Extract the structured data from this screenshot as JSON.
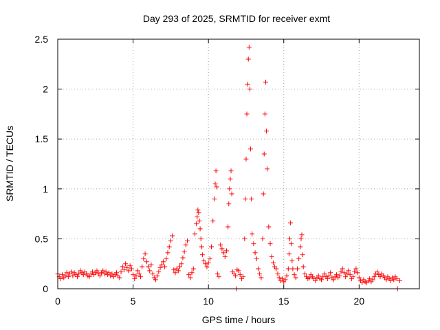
{
  "colors": {
    "series": "#ff0000",
    "grid": "#a0a0a0",
    "axis": "#000000",
    "background": "#ffffff"
  },
  "chart_data": {
    "type": "scatter",
    "title": "Day 293 of 2025, SRMTID for receiver exmt",
    "xlabel": "GPS time / hours",
    "ylabel": "SRMTID / TECUs",
    "xlim": [
      0,
      24
    ],
    "ylim": [
      0,
      2.5
    ],
    "xticks": [
      0,
      5,
      10,
      15,
      20
    ],
    "xtick_labels": [
      "0",
      "5",
      "10",
      "15",
      "20"
    ],
    "yticks": [
      0,
      0.5,
      1,
      1.5,
      2,
      2.5
    ],
    "ytick_labels": [
      "0",
      "0.5",
      "1",
      "1.5",
      "2",
      "2.5"
    ],
    "grid": true,
    "marker": "+",
    "series": [
      {
        "name": "SRMTID",
        "points": [
          [
            0.0,
            0.15
          ],
          [
            0.1,
            0.12
          ],
          [
            0.2,
            0.1
          ],
          [
            0.3,
            0.14
          ],
          [
            0.4,
            0.11
          ],
          [
            0.5,
            0.13
          ],
          [
            0.6,
            0.16
          ],
          [
            0.7,
            0.12
          ],
          [
            0.8,
            0.15
          ],
          [
            0.9,
            0.17
          ],
          [
            1.0,
            0.13
          ],
          [
            1.1,
            0.16
          ],
          [
            1.2,
            0.14
          ],
          [
            1.3,
            0.12
          ],
          [
            1.4,
            0.15
          ],
          [
            1.5,
            0.18
          ],
          [
            1.6,
            0.16
          ],
          [
            1.7,
            0.14
          ],
          [
            1.8,
            0.17
          ],
          [
            1.9,
            0.15
          ],
          [
            2.0,
            0.13
          ],
          [
            2.1,
            0.12
          ],
          [
            2.2,
            0.15
          ],
          [
            2.3,
            0.17
          ],
          [
            2.4,
            0.14
          ],
          [
            2.5,
            0.16
          ],
          [
            2.6,
            0.18
          ],
          [
            2.7,
            0.15
          ],
          [
            2.8,
            0.13
          ],
          [
            2.9,
            0.16
          ],
          [
            3.0,
            0.18
          ],
          [
            3.1,
            0.15
          ],
          [
            3.2,
            0.17
          ],
          [
            3.3,
            0.14
          ],
          [
            3.4,
            0.16
          ],
          [
            3.5,
            0.13
          ],
          [
            3.6,
            0.15
          ],
          [
            3.7,
            0.12
          ],
          [
            3.8,
            0.14
          ],
          [
            3.9,
            0.16
          ],
          [
            4.0,
            0.13
          ],
          [
            4.1,
            0.11
          ],
          [
            4.2,
            0.17
          ],
          [
            4.3,
            0.22
          ],
          [
            4.4,
            0.19
          ],
          [
            4.5,
            0.25
          ],
          [
            4.6,
            0.21
          ],
          [
            4.7,
            0.18
          ],
          [
            4.8,
            0.23
          ],
          [
            4.9,
            0.2
          ],
          [
            5.0,
            0.14
          ],
          [
            5.1,
            0.1
          ],
          [
            5.2,
            0.13
          ],
          [
            5.3,
            0.18
          ],
          [
            5.4,
            0.15
          ],
          [
            5.5,
            0.12
          ],
          [
            5.6,
            0.22
          ],
          [
            5.7,
            0.3
          ],
          [
            5.8,
            0.35
          ],
          [
            5.9,
            0.27
          ],
          [
            6.0,
            0.22
          ],
          [
            6.1,
            0.18
          ],
          [
            6.2,
            0.24
          ],
          [
            6.3,
            0.15
          ],
          [
            6.4,
            0.11
          ],
          [
            6.5,
            0.09
          ],
          [
            6.6,
            0.13
          ],
          [
            6.7,
            0.17
          ],
          [
            6.8,
            0.21
          ],
          [
            6.9,
            0.24
          ],
          [
            7.0,
            0.27
          ],
          [
            7.1,
            0.22
          ],
          [
            7.2,
            0.3
          ],
          [
            7.3,
            0.36
          ],
          [
            7.4,
            0.42
          ],
          [
            7.5,
            0.48
          ],
          [
            7.6,
            0.53
          ],
          [
            7.7,
            0.19
          ],
          [
            7.8,
            0.16
          ],
          [
            7.9,
            0.2
          ],
          [
            8.0,
            0.18
          ],
          [
            8.1,
            0.22
          ],
          [
            8.2,
            0.25
          ],
          [
            8.3,
            0.31
          ],
          [
            8.4,
            0.37
          ],
          [
            8.5,
            0.44
          ],
          [
            8.6,
            0.48
          ],
          [
            8.7,
            0.14
          ],
          [
            8.8,
            0.11
          ],
          [
            8.9,
            0.16
          ],
          [
            9.0,
            0.2
          ],
          [
            9.1,
            0.55
          ],
          [
            9.2,
            0.65
          ],
          [
            9.25,
            0.72
          ],
          [
            9.3,
            0.79
          ],
          [
            9.35,
            0.76
          ],
          [
            9.4,
            0.68
          ],
          [
            9.45,
            0.6
          ],
          [
            9.5,
            0.5
          ],
          [
            9.55,
            0.42
          ],
          [
            9.6,
            0.34
          ],
          [
            9.7,
            0.28
          ],
          [
            9.8,
            0.25
          ],
          [
            9.9,
            0.22
          ],
          [
            10.0,
            0.26
          ],
          [
            10.1,
            0.3
          ],
          [
            10.2,
            0.42
          ],
          [
            10.3,
            0.68
          ],
          [
            10.4,
            0.9
          ],
          [
            10.45,
            1.05
          ],
          [
            10.5,
            1.18
          ],
          [
            10.55,
            1.02
          ],
          [
            10.6,
            0.15
          ],
          [
            10.7,
            0.12
          ],
          [
            10.8,
            0.44
          ],
          [
            10.9,
            0.4
          ],
          [
            11.0,
            0.36
          ],
          [
            11.1,
            0.32
          ],
          [
            11.2,
            0.38
          ],
          [
            11.3,
            0.62
          ],
          [
            11.35,
            0.85
          ],
          [
            11.4,
            1.0
          ],
          [
            11.45,
            1.1
          ],
          [
            11.5,
            1.18
          ],
          [
            11.55,
            0.95
          ],
          [
            11.6,
            0.17
          ],
          [
            11.7,
            0.15
          ],
          [
            11.8,
            0.13
          ],
          [
            11.85,
            0.0
          ],
          [
            11.9,
            0.19
          ],
          [
            12.0,
            0.18
          ],
          [
            12.1,
            0.14
          ],
          [
            12.2,
            0.1
          ],
          [
            12.3,
            0.12
          ],
          [
            12.4,
            0.5
          ],
          [
            12.45,
            0.9
          ],
          [
            12.5,
            1.3
          ],
          [
            12.55,
            1.75
          ],
          [
            12.6,
            2.05
          ],
          [
            12.65,
            2.3
          ],
          [
            12.7,
            2.42
          ],
          [
            12.75,
            2.0
          ],
          [
            12.8,
            1.4
          ],
          [
            12.85,
            0.9
          ],
          [
            12.9,
            0.55
          ],
          [
            13.0,
            0.45
          ],
          [
            13.1,
            0.36
          ],
          [
            13.2,
            0.3
          ],
          [
            13.3,
            0.2
          ],
          [
            13.4,
            0.15
          ],
          [
            13.5,
            0.11
          ],
          [
            13.6,
            0.5
          ],
          [
            13.65,
            0.95
          ],
          [
            13.7,
            1.35
          ],
          [
            13.75,
            1.75
          ],
          [
            13.8,
            2.07
          ],
          [
            13.85,
            1.58
          ],
          [
            13.9,
            1.2
          ],
          [
            14.0,
            0.62
          ],
          [
            14.1,
            0.45
          ],
          [
            14.2,
            0.32
          ],
          [
            14.3,
            0.26
          ],
          [
            14.4,
            0.22
          ],
          [
            14.5,
            0.2
          ],
          [
            14.6,
            0.15
          ],
          [
            14.7,
            0.11
          ],
          [
            14.8,
            0.08
          ],
          [
            14.9,
            0.1
          ],
          [
            15.0,
            0.07
          ],
          [
            15.1,
            0.09
          ],
          [
            15.2,
            0.13
          ],
          [
            15.3,
            0.2
          ],
          [
            15.35,
            0.35
          ],
          [
            15.4,
            0.5
          ],
          [
            15.45,
            0.66
          ],
          [
            15.5,
            0.45
          ],
          [
            15.55,
            0.28
          ],
          [
            15.6,
            0.2
          ],
          [
            15.7,
            0.14
          ],
          [
            15.8,
            0.11
          ],
          [
            15.9,
            0.2
          ],
          [
            16.0,
            0.3
          ],
          [
            16.1,
            0.42
          ],
          [
            16.15,
            0.5
          ],
          [
            16.2,
            0.54
          ],
          [
            16.25,
            0.34
          ],
          [
            16.3,
            0.22
          ],
          [
            16.4,
            0.15
          ],
          [
            16.5,
            0.12
          ],
          [
            16.6,
            0.1
          ],
          [
            16.7,
            0.11
          ],
          [
            16.8,
            0.14
          ],
          [
            16.9,
            0.12
          ],
          [
            17.0,
            0.1
          ],
          [
            17.1,
            0.08
          ],
          [
            17.2,
            0.11
          ],
          [
            17.3,
            0.13
          ],
          [
            17.4,
            0.1
          ],
          [
            17.5,
            0.09
          ],
          [
            17.6,
            0.12
          ],
          [
            17.7,
            0.15
          ],
          [
            17.8,
            0.12
          ],
          [
            17.9,
            0.1
          ],
          [
            18.0,
            0.13
          ],
          [
            18.1,
            0.16
          ],
          [
            18.2,
            0.11
          ],
          [
            18.3,
            0.09
          ],
          [
            18.4,
            0.12
          ],
          [
            18.5,
            0.14
          ],
          [
            18.6,
            0.11
          ],
          [
            18.7,
            0.13
          ],
          [
            18.8,
            0.17
          ],
          [
            18.9,
            0.2
          ],
          [
            19.0,
            0.16
          ],
          [
            19.1,
            0.12
          ],
          [
            19.2,
            0.15
          ],
          [
            19.3,
            0.18
          ],
          [
            19.4,
            0.14
          ],
          [
            19.5,
            0.1
          ],
          [
            19.6,
            0.12
          ],
          [
            19.7,
            0.17
          ],
          [
            19.8,
            0.2
          ],
          [
            19.9,
            0.16
          ],
          [
            20.0,
            0.11
          ],
          [
            20.1,
            0.08
          ],
          [
            20.2,
            0.06
          ],
          [
            20.3,
            0.09
          ],
          [
            20.4,
            0.07
          ],
          [
            20.5,
            0.06
          ],
          [
            20.6,
            0.08
          ],
          [
            20.7,
            0.1
          ],
          [
            20.8,
            0.07
          ],
          [
            20.9,
            0.09
          ],
          [
            21.0,
            0.12
          ],
          [
            21.1,
            0.15
          ],
          [
            21.2,
            0.17
          ],
          [
            21.3,
            0.14
          ],
          [
            21.4,
            0.12
          ],
          [
            21.5,
            0.15
          ],
          [
            21.6,
            0.13
          ],
          [
            21.7,
            0.11
          ],
          [
            21.8,
            0.09
          ],
          [
            21.9,
            0.12
          ],
          [
            22.0,
            0.1
          ],
          [
            22.1,
            0.08
          ],
          [
            22.2,
            0.11
          ],
          [
            22.3,
            0.09
          ],
          [
            22.4,
            0.12
          ],
          [
            22.5,
            0.1
          ],
          [
            22.55,
            0.0
          ],
          [
            22.7,
            0.08
          ]
        ]
      }
    ]
  }
}
